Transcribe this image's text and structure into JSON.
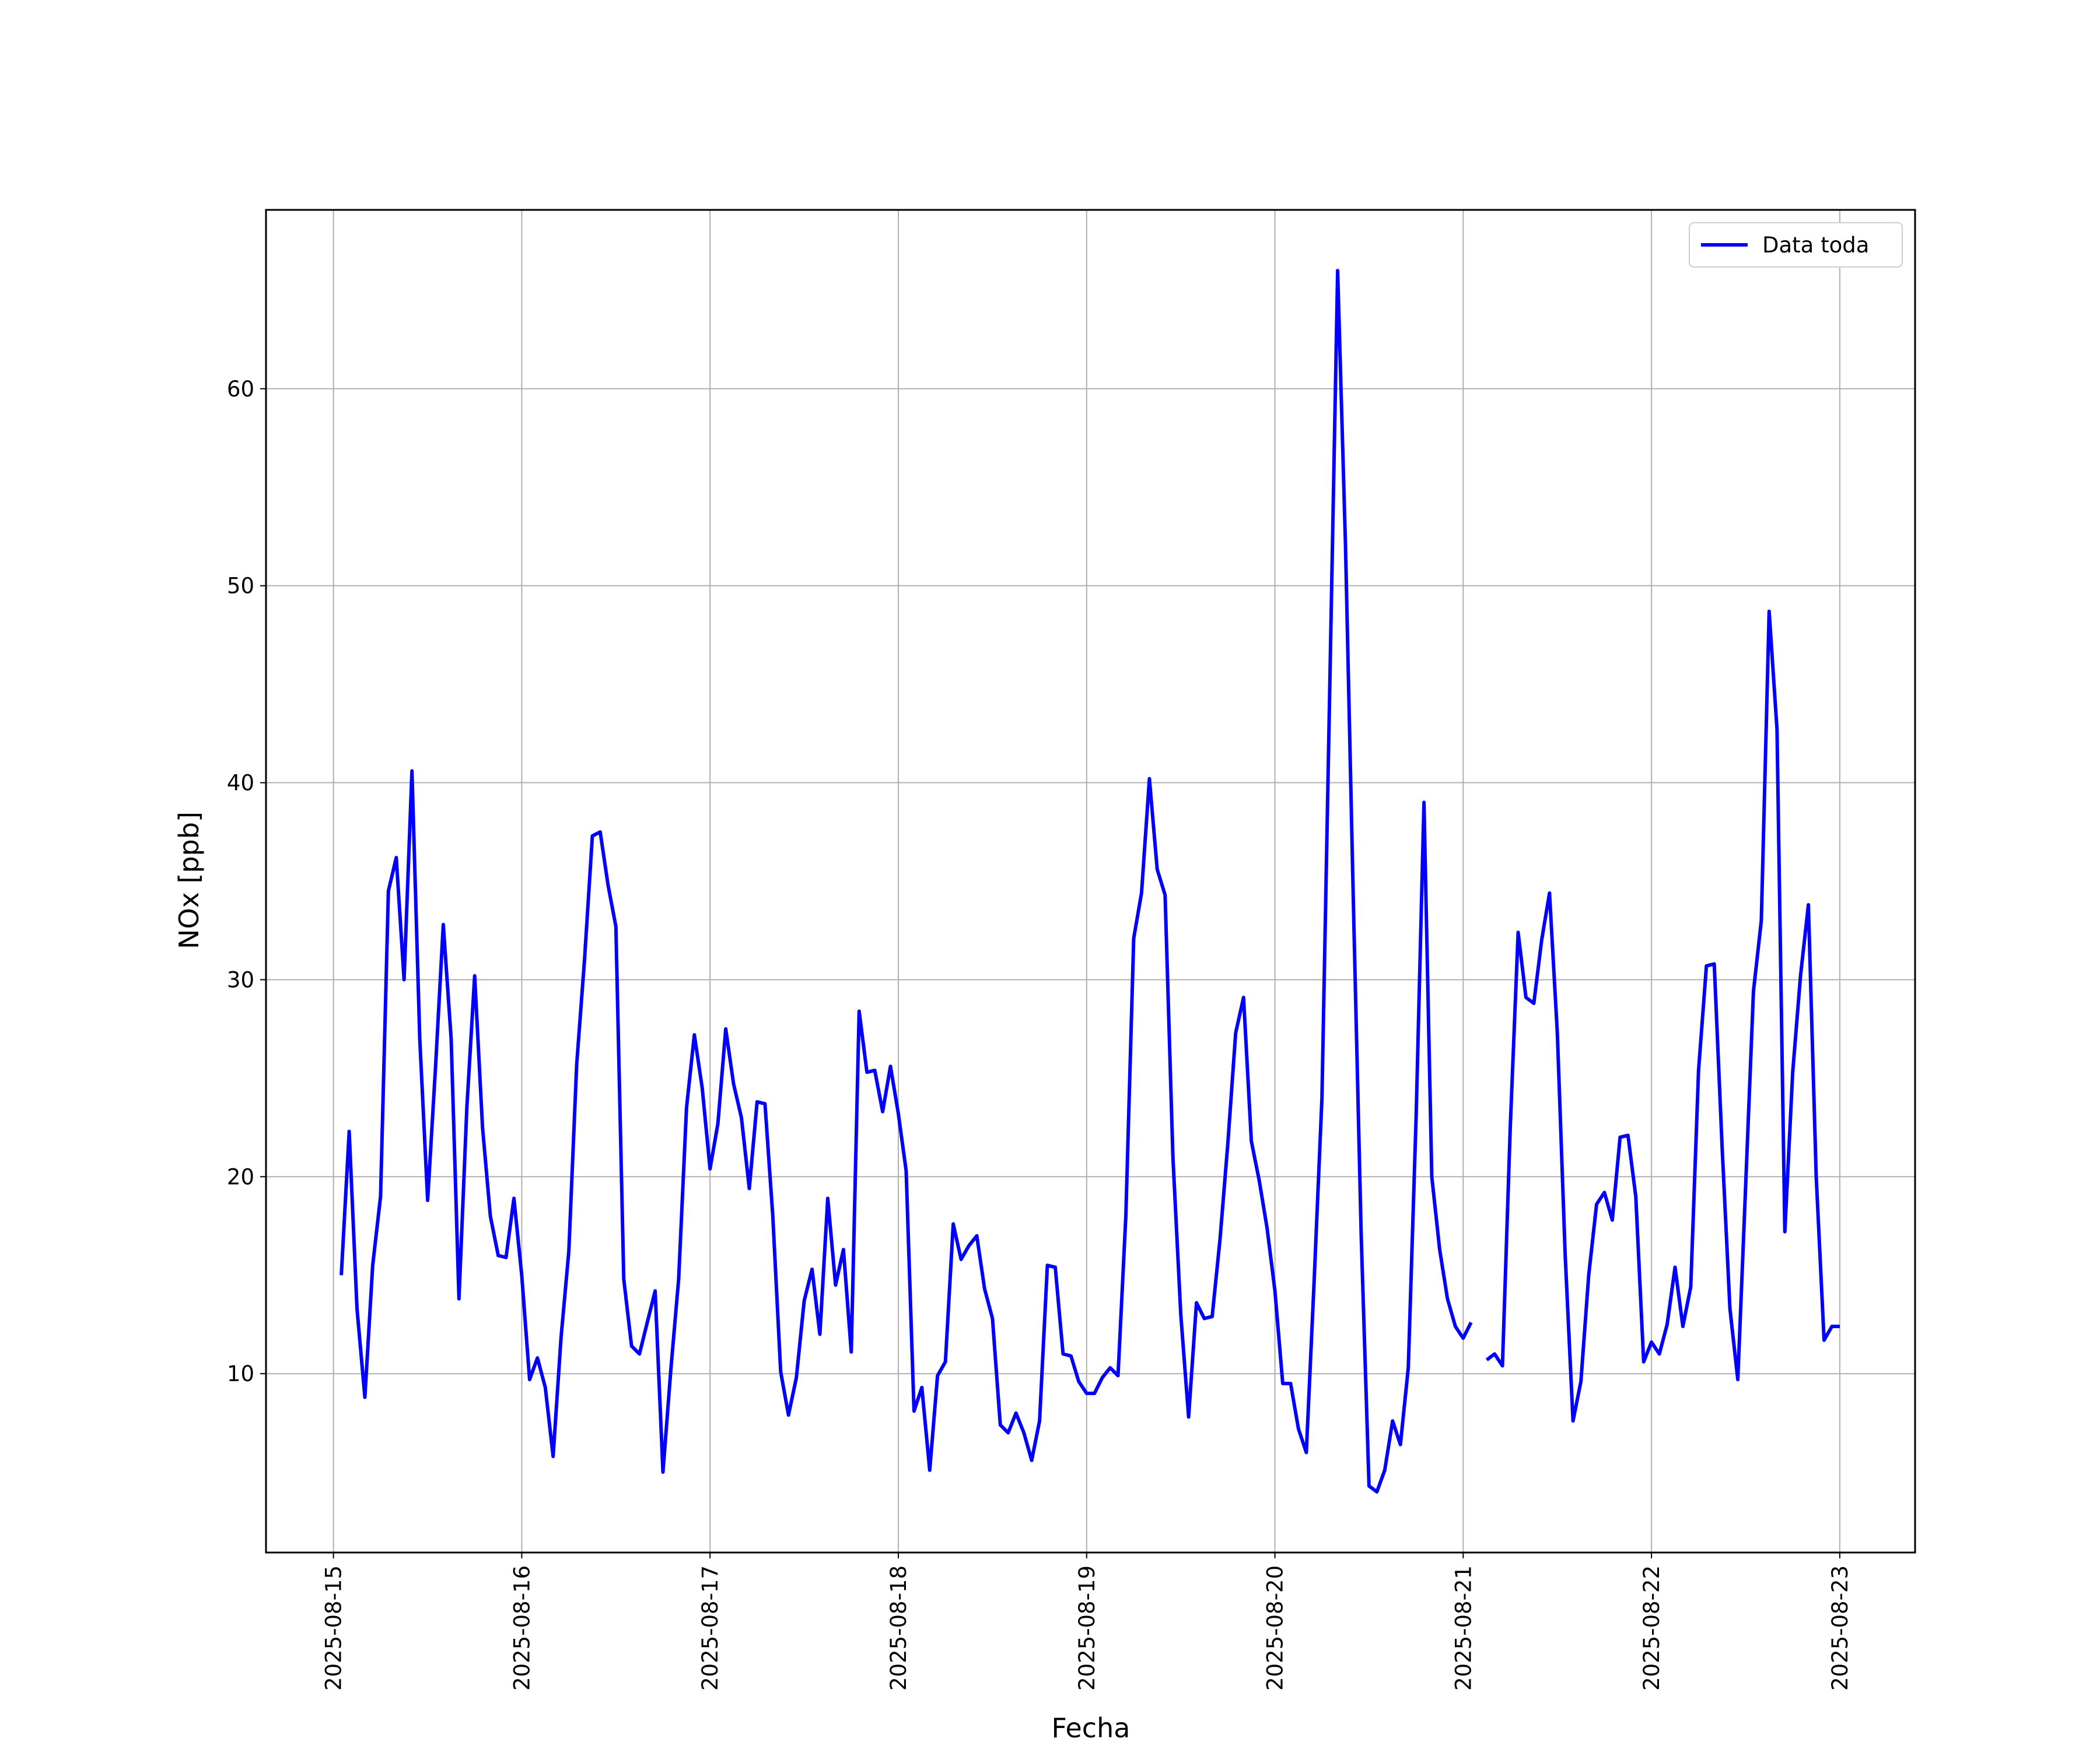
{
  "chart_data": {
    "type": "line",
    "xlabel": "Fecha",
    "ylabel": "NOx [ppb]",
    "x": [
      1,
      2,
      3,
      4,
      5,
      6,
      7,
      8,
      9,
      10,
      11,
      12,
      13,
      14,
      15,
      16,
      17,
      18,
      19,
      20,
      21,
      22,
      23,
      24,
      25,
      26,
      27,
      28,
      29,
      30,
      31,
      32,
      33,
      34,
      35,
      36,
      37,
      38,
      39,
      40,
      41,
      42,
      43,
      44,
      45,
      46,
      47,
      48,
      49,
      50,
      51,
      52,
      53,
      54,
      55,
      56,
      57,
      58,
      59,
      60,
      61,
      62,
      63,
      64,
      65,
      66,
      67,
      68,
      69,
      70,
      71,
      72,
      73,
      74,
      75,
      76,
      77,
      78,
      79,
      80,
      81,
      82,
      83,
      84,
      85,
      86,
      87,
      88,
      89,
      90,
      91,
      92,
      93,
      94,
      95,
      96,
      97,
      98,
      99,
      100,
      101,
      102,
      103,
      104,
      105,
      106,
      107,
      108,
      109,
      110,
      111,
      112,
      113,
      114,
      115,
      116,
      117,
      118,
      119,
      120,
      121,
      122,
      123,
      124,
      125,
      126,
      127,
      128,
      129,
      130,
      131,
      132,
      133,
      134,
      135,
      136,
      137,
      138,
      139,
      140,
      141,
      142,
      143,
      144,
      145,
      146,
      147,
      148,
      149,
      150,
      151,
      152,
      153,
      154,
      155,
      156,
      157,
      158,
      159,
      160,
      161,
      162,
      163,
      164,
      165,
      166,
      167,
      168,
      169,
      170,
      171,
      172,
      173,
      174,
      175,
      176,
      177,
      178,
      179,
      180,
      181,
      182,
      183,
      184,
      185,
      186,
      187,
      188,
      189,
      190,
      191,
      192
    ],
    "series": [
      {
        "name": "Data toda",
        "color": "#0000ff",
        "values": [
          15.0,
          22.3,
          13.3,
          8.8,
          15.5,
          19.0,
          34.5,
          36.2,
          30.0,
          40.6,
          27.0,
          18.8,
          25.5,
          32.8,
          27.0,
          13.8,
          23.5,
          30.2,
          22.5,
          18.0,
          16.0,
          15.9,
          18.9,
          15.0,
          9.7,
          10.8,
          9.3,
          5.8,
          11.8,
          16.2,
          25.7,
          31.0,
          37.3,
          37.5,
          34.8,
          32.7,
          14.8,
          11.4,
          11.0,
          12.6,
          14.2,
          5.0,
          10.2,
          14.8,
          23.5,
          27.2,
          24.5,
          20.4,
          22.7,
          27.5,
          24.7,
          23.0,
          19.4,
          23.8,
          23.7,
          18.0,
          10.1,
          7.9,
          9.8,
          13.7,
          15.3,
          12.0,
          18.9,
          14.5,
          16.3,
          11.1,
          28.4,
          25.3,
          25.4,
          23.3,
          25.6,
          23.2,
          20.3,
          8.1,
          9.3,
          5.1,
          9.9,
          10.6,
          17.6,
          15.8,
          16.5,
          17.0,
          14.3,
          12.8,
          7.4,
          7.0,
          8.0,
          7.0,
          5.6,
          7.6,
          15.5,
          15.4,
          11.0,
          10.9,
          9.6,
          9.0,
          9.0,
          9.8,
          10.3,
          9.9,
          18.0,
          32.1,
          34.4,
          40.2,
          35.6,
          34.3,
          21.0,
          13.0,
          7.8,
          13.6,
          12.8,
          12.9,
          16.8,
          21.7,
          27.3,
          29.1,
          21.8,
          19.8,
          17.4,
          14.2,
          9.5,
          9.5,
          7.2,
          6.0,
          14.7,
          24.0,
          45.0,
          66.0,
          52.0,
          34.0,
          17.0,
          4.3,
          4.0,
          5.1,
          7.6,
          6.4,
          10.3,
          23.0,
          39.0,
          20.0,
          16.3,
          13.8,
          12.4,
          11.8,
          12.6,
          null,
          10.7,
          11.0,
          10.4,
          22.5,
          32.4,
          29.1,
          28.8,
          32.0,
          34.4,
          27.3,
          16.0,
          7.6,
          9.6,
          15.0,
          18.6,
          19.2,
          17.8,
          22.0,
          22.1,
          19.0,
          10.6,
          11.6,
          11.0,
          12.5,
          15.4,
          12.4,
          14.4,
          25.4,
          30.7,
          30.8,
          21.5,
          13.3,
          9.7,
          19.5,
          29.4,
          33.0,
          48.7,
          42.7,
          17.2,
          25.3,
          30.2,
          33.8,
          20.0,
          11.7,
          12.4,
          12.4
        ]
      }
    ],
    "xlim": [
      -8.6,
      201.6
    ],
    "xticks": [
      {
        "value": 0,
        "label": "2025-08-15"
      },
      {
        "value": 24,
        "label": "2025-08-16"
      },
      {
        "value": 48,
        "label": "2025-08-17"
      },
      {
        "value": 72,
        "label": "2025-08-18"
      },
      {
        "value": 96,
        "label": "2025-08-19"
      },
      {
        "value": 120,
        "label": "2025-08-20"
      },
      {
        "value": 144,
        "label": "2025-08-21"
      },
      {
        "value": 168,
        "label": "2025-08-22"
      },
      {
        "value": 192,
        "label": "2025-08-23"
      }
    ],
    "ylim": [
      0.92,
      69.08
    ],
    "yticks": [
      10,
      20,
      30,
      40,
      50,
      60
    ],
    "grid": true,
    "legend": "upper right"
  }
}
